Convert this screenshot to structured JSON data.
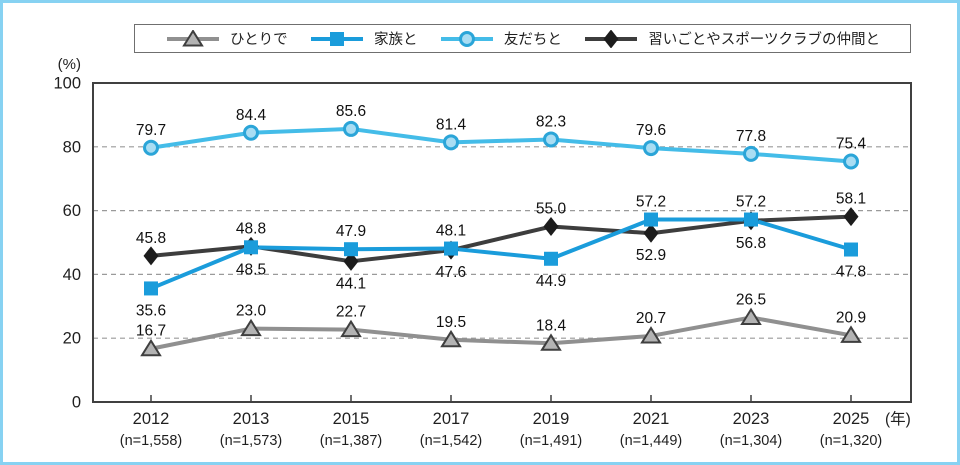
{
  "frame": {
    "border_color": "#87d2f2"
  },
  "legend": {
    "items": [
      {
        "label": "ひとりで",
        "marker": "triangle"
      },
      {
        "label": "家族と",
        "marker": "square"
      },
      {
        "label": "友だちと",
        "marker": "circle"
      },
      {
        "label": "習いごとやスポーツクラブの仲間と",
        "marker": "diamond"
      }
    ]
  },
  "chart_data": {
    "type": "line",
    "title": "",
    "y_axis_unit": "(%)",
    "x_axis_unit": "(年)",
    "ylim": [
      0,
      100
    ],
    "y_ticks": [
      100,
      80,
      60,
      40,
      20,
      0
    ],
    "grid": "horizontal dashed gridlines at 20, 40, 60, 80",
    "legend_position": "top",
    "categories": [
      {
        "year": "2012",
        "n": "(n=1,558)"
      },
      {
        "year": "2013",
        "n": "(n=1,573)"
      },
      {
        "year": "2015",
        "n": "(n=1,387)"
      },
      {
        "year": "2017",
        "n": "(n=1,542)"
      },
      {
        "year": "2019",
        "n": "(n=1,491)"
      },
      {
        "year": "2021",
        "n": "(n=1,449)"
      },
      {
        "year": "2023",
        "n": "(n=1,304)"
      },
      {
        "year": "2025",
        "n": "(n=1,320)"
      }
    ],
    "series": [
      {
        "name": "ひとりで",
        "marker": "triangle",
        "line_color": "#909090",
        "marker_fill": "#b3b3b3",
        "marker_stroke": "#3f3f3f",
        "values": [
          16.7,
          23.0,
          22.7,
          19.5,
          18.4,
          20.7,
          26.5,
          20.9
        ],
        "label_positions": [
          "above",
          "above",
          "above",
          "above",
          "above",
          "above",
          "above",
          "above"
        ]
      },
      {
        "name": "家族と",
        "marker": "square",
        "line_color": "#1a9cdb",
        "marker_fill": "#1a9cdb",
        "marker_stroke": "none",
        "values": [
          35.6,
          48.5,
          47.9,
          48.1,
          44.9,
          57.2,
          57.2,
          47.8
        ],
        "label_positions": [
          "below",
          "below",
          "above",
          "above",
          "below",
          "above",
          "above",
          "below"
        ]
      },
      {
        "name": "友だちと",
        "marker": "circle",
        "line_color": "#44bce8",
        "marker_fill": "#a9ddf3",
        "marker_stroke": "#2ba5d8",
        "values": [
          79.7,
          84.4,
          85.6,
          81.4,
          82.3,
          79.6,
          77.8,
          75.4
        ],
        "label_positions": [
          "above",
          "above",
          "above",
          "above",
          "above",
          "above",
          "above",
          "above"
        ]
      },
      {
        "name": "習いごとやスポーツクラブの仲間と",
        "marker": "diamond",
        "line_color": "#3d3d3d",
        "marker_fill": "#1c1c1c",
        "marker_stroke": "none",
        "values": [
          45.8,
          48.8,
          44.1,
          47.6,
          55.0,
          52.9,
          56.8,
          58.1
        ],
        "label_positions": [
          "above",
          "above",
          "below",
          "below",
          "above",
          "below",
          "below",
          "above"
        ]
      }
    ]
  }
}
